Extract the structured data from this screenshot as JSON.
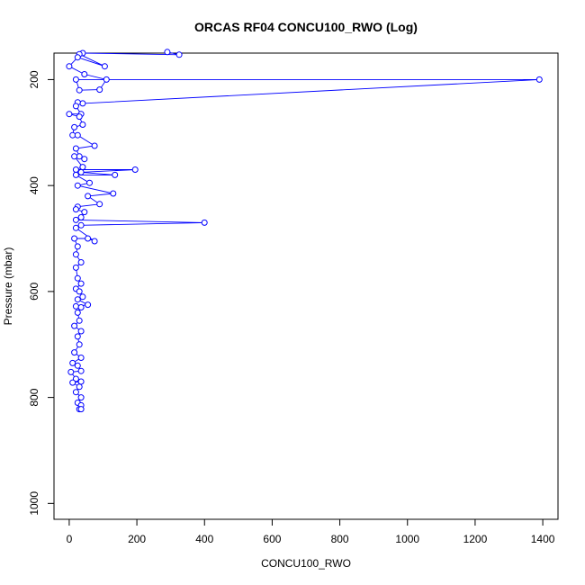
{
  "chart_data": {
    "type": "line",
    "title": "ORCAS RF04 CONCU100_RWO (Log)",
    "xlabel": "CONCU100_RWO",
    "ylabel": "Pressure (mbar)",
    "xlim": [
      -45,
      1445
    ],
    "ylim": [
      1030,
      150
    ],
    "y_reversed": true,
    "x_ticks": [
      0,
      200,
      400,
      600,
      800,
      1000,
      1200,
      1400
    ],
    "y_ticks": [
      200,
      400,
      600,
      800,
      1000
    ],
    "x_tick_labels": [
      "0",
      "200",
      "400",
      "600",
      "800",
      "1000",
      "1200",
      "1400"
    ],
    "y_tick_labels": [
      "200",
      "400",
      "600",
      "800",
      "1000"
    ],
    "grid": false,
    "series": [
      {
        "color": "#0000ff",
        "marker": "open-circle",
        "line_style": "solid",
        "points": [
          [
            290,
            148
          ],
          [
            325,
            153
          ],
          [
            40,
            150
          ],
          [
            30,
            152
          ],
          [
            105,
            175
          ],
          [
            25,
            158
          ],
          [
            0,
            175
          ],
          [
            45,
            190
          ],
          [
            110,
            200
          ],
          [
            90,
            219
          ],
          [
            30,
            220
          ],
          [
            20,
            200
          ],
          [
            1390,
            200
          ],
          [
            40,
            245
          ],
          [
            25,
            243
          ],
          [
            20,
            250
          ],
          [
            35,
            265
          ],
          [
            0,
            265
          ],
          [
            30,
            270
          ],
          [
            40,
            285
          ],
          [
            15,
            290
          ],
          [
            10,
            305
          ],
          [
            25,
            305
          ],
          [
            75,
            325
          ],
          [
            20,
            330
          ],
          [
            30,
            345
          ],
          [
            45,
            350
          ],
          [
            15,
            345
          ],
          [
            40,
            365
          ],
          [
            20,
            370
          ],
          [
            195,
            370
          ],
          [
            35,
            375
          ],
          [
            135,
            380
          ],
          [
            20,
            380
          ],
          [
            60,
            395
          ],
          [
            25,
            400
          ],
          [
            130,
            415
          ],
          [
            55,
            420
          ],
          [
            90,
            435
          ],
          [
            25,
            440
          ],
          [
            20,
            445
          ],
          [
            45,
            450
          ],
          [
            35,
            460
          ],
          [
            20,
            465
          ],
          [
            400,
            470
          ],
          [
            35,
            475
          ],
          [
            20,
            480
          ],
          [
            75,
            505
          ],
          [
            55,
            500
          ],
          [
            15,
            500
          ],
          [
            25,
            515
          ],
          [
            20,
            530
          ],
          [
            35,
            545
          ],
          [
            20,
            555
          ],
          [
            25,
            575
          ],
          [
            35,
            585
          ],
          [
            20,
            595
          ],
          [
            30,
            600
          ],
          [
            40,
            610
          ],
          [
            25,
            615
          ],
          [
            55,
            625
          ],
          [
            20,
            628
          ],
          [
            35,
            630
          ],
          [
            25,
            640
          ],
          [
            30,
            655
          ],
          [
            15,
            665
          ],
          [
            35,
            675
          ],
          [
            25,
            685
          ],
          [
            30,
            700
          ],
          [
            15,
            715
          ],
          [
            35,
            725
          ],
          [
            10,
            735
          ],
          [
            25,
            740
          ],
          [
            35,
            750
          ],
          [
            5,
            752
          ],
          [
            20,
            765
          ],
          [
            35,
            770
          ],
          [
            10,
            772
          ],
          [
            30,
            780
          ],
          [
            20,
            790
          ],
          [
            35,
            800
          ],
          [
            25,
            810
          ],
          [
            35,
            815
          ],
          [
            30,
            822
          ],
          [
            35,
            822
          ]
        ]
      }
    ]
  }
}
